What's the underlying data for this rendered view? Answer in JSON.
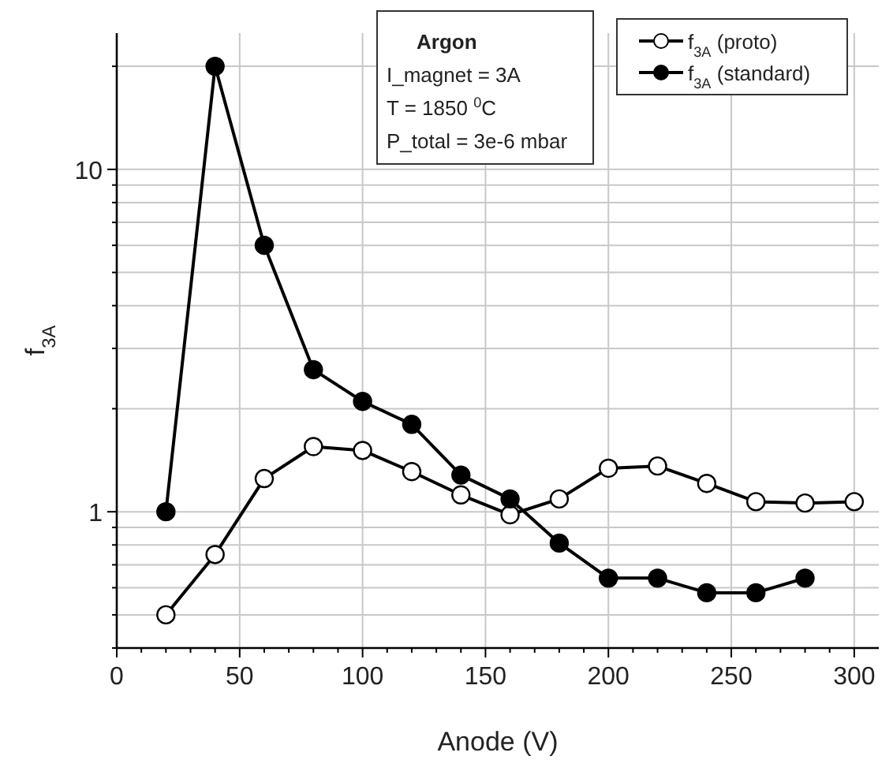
{
  "chart_data": {
    "type": "line",
    "xlabel": "Anode (V)",
    "ylabel": "f$_{3A}$",
    "annotations": [
      "Argon",
      "I_magnet = 3A",
      "T = 1850 $^{0}$C",
      "P_total = 3e-6 mbar"
    ],
    "log": "y",
    "grid": true,
    "legend": "top right",
    "marker": "circle",
    "line_style": "solid",
    "xlim": [
      0,
      310
    ],
    "xticks": [
      0,
      {
        "value": 10,
        "label": null
      },
      {
        "value": 20,
        "label": null
      },
      {
        "value": 30,
        "label": null
      },
      {
        "value": 40,
        "label": null
      },
      50,
      {
        "value": 60,
        "label": null
      },
      {
        "value": 70,
        "label": null
      },
      {
        "value": 80,
        "label": null
      },
      {
        "value": 90,
        "label": null
      },
      100,
      {
        "value": 110,
        "label": null
      },
      {
        "value": 120,
        "label": null
      },
      {
        "value": 130,
        "label": null
      },
      {
        "value": 140,
        "label": null
      },
      150,
      {
        "value": 160,
        "label": null
      },
      {
        "value": 170,
        "label": null
      },
      {
        "value": 180,
        "label": null
      },
      {
        "value": 190,
        "label": null
      },
      200,
      {
        "value": 210,
        "label": null
      },
      {
        "value": 220,
        "label": null
      },
      {
        "value": 230,
        "label": null
      },
      {
        "value": 240,
        "label": null
      },
      250,
      {
        "value": 260,
        "label": null
      },
      {
        "value": 270,
        "label": null
      },
      {
        "value": 280,
        "label": null
      },
      {
        "value": 290,
        "label": null
      },
      300
    ],
    "ylim": [
      0.4,
      25
    ],
    "yticks": [
      {
        "value": 0.4,
        "label": null
      },
      {
        "value": 0.5,
        "label": null
      },
      {
        "value": 0.6,
        "label": null
      },
      {
        "value": 0.7,
        "label": null
      },
      {
        "value": 0.8,
        "label": null
      },
      {
        "value": 0.9,
        "label": null
      },
      1,
      {
        "value": 2,
        "label": null
      },
      {
        "value": 3,
        "label": null
      },
      {
        "value": 4,
        "label": null
      },
      {
        "value": 5,
        "label": null
      },
      {
        "value": 6,
        "label": null
      },
      {
        "value": 7,
        "label": null
      },
      {
        "value": 8,
        "label": null
      },
      {
        "value": 9,
        "label": null
      },
      10,
      {
        "value": 20,
        "label": null
      }
    ],
    "x": [
      20,
      40,
      60,
      80,
      100,
      120,
      140,
      160,
      180,
      200,
      220,
      240,
      260,
      280,
      300
    ],
    "series": [
      {
        "name": "f$_{3A}$ (proto)",
        "color": "#000000",
        "values": [
          0.5,
          0.75,
          1.25,
          1.55,
          1.51,
          1.31,
          1.12,
          0.98,
          1.09,
          1.34,
          1.36,
          1.21,
          1.07,
          1.06,
          1.07
        ]
      },
      {
        "name": "f$_{3A}$ (standard)",
        "color": "#000000",
        "values": [
          1.0,
          20,
          6.0,
          2.6,
          2.1,
          1.8,
          1.28,
          1.09,
          0.81,
          0.64,
          0.64,
          0.58,
          0.58,
          0.64,
          null
        ]
      }
    ]
  }
}
